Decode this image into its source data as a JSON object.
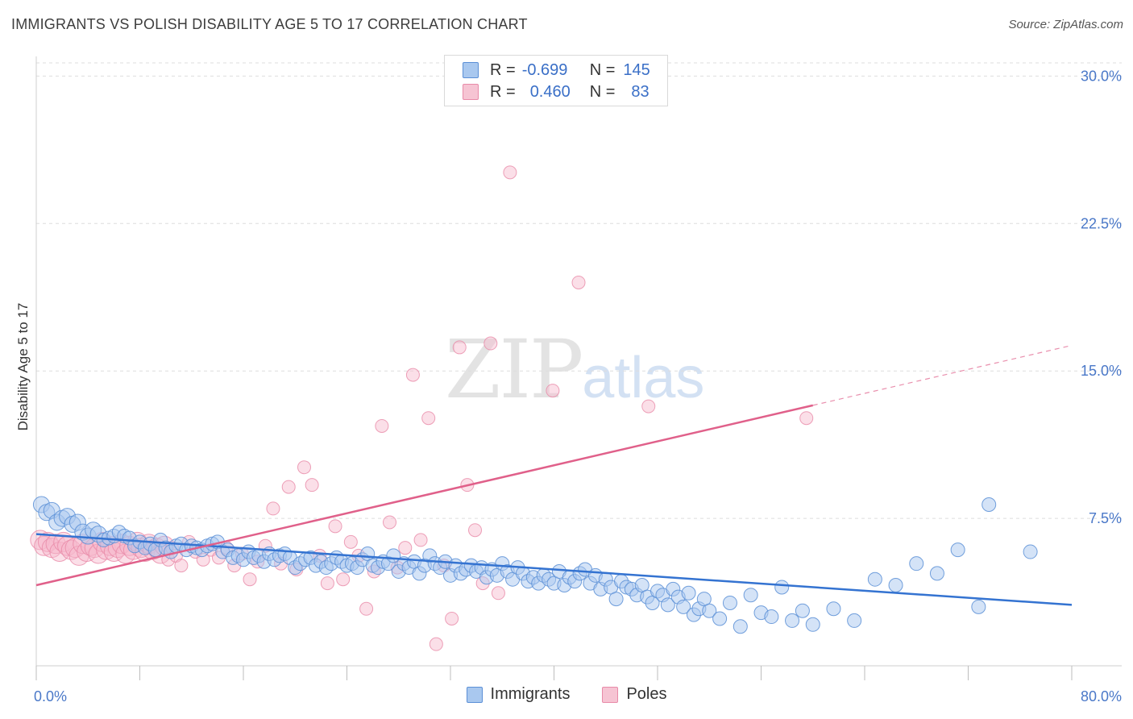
{
  "header": {
    "title": "IMMIGRANTS VS POLISH DISABILITY AGE 5 TO 17 CORRELATION CHART",
    "source": "Source: ZipAtlas.com"
  },
  "watermark": {
    "zip": "ZIP",
    "atlas": "atlas"
  },
  "legend": {
    "immigrants": {
      "r_label": "R =",
      "r_value": "-0.699",
      "n_label": "N =",
      "n_value": "145"
    },
    "poles": {
      "r_label": "R =",
      "r_value": "0.460",
      "n_label": "N =",
      "n_value": "83"
    }
  },
  "bottom_legend": {
    "immigrants": "Immigrants",
    "poles": "Poles"
  },
  "colors": {
    "immigrants_fill": "#a9c8ef",
    "immigrants_stroke": "#5b8fd6",
    "immigrants_line": "#3473d1",
    "poles_fill": "#f6b8cb",
    "poles_stroke": "#e88aa8",
    "poles_line": "#e0608a",
    "tick_text": "#4a78c8",
    "grid": "#dedede"
  },
  "chart_data": {
    "type": "scatter",
    "title": "IMMIGRANTS VS POLISH DISABILITY AGE 5 TO 17 CORRELATION CHART",
    "xlabel": "",
    "ylabel": "Disability Age 5 to 17",
    "xlim": [
      0,
      80
    ],
    "ylim": [
      0,
      31
    ],
    "x_tick_labels": [
      "0.0%",
      "80.0%"
    ],
    "y_ticks": [
      7.5,
      15.0,
      22.5,
      30.0
    ],
    "y_tick_labels": [
      "7.5%",
      "15.0%",
      "22.5%",
      "30.0%"
    ],
    "grid": "horizontal dashed",
    "legend_position": "top-center",
    "series": [
      {
        "name": "Immigrants",
        "r": -0.699,
        "n": 145,
        "trend": {
          "x": [
            0,
            80
          ],
          "y": [
            6.7,
            3.1
          ]
        },
        "points": [
          [
            0.4,
            8.2
          ],
          [
            0.8,
            7.8
          ],
          [
            1.2,
            7.9
          ],
          [
            1.6,
            7.3
          ],
          [
            2.0,
            7.5
          ],
          [
            2.4,
            7.6
          ],
          [
            2.8,
            7.2
          ],
          [
            3.2,
            7.3
          ],
          [
            3.6,
            6.8
          ],
          [
            4.0,
            6.6
          ],
          [
            4.4,
            6.9
          ],
          [
            4.8,
            6.7
          ],
          [
            5.2,
            6.4
          ],
          [
            5.6,
            6.5
          ],
          [
            6.0,
            6.6
          ],
          [
            6.4,
            6.8
          ],
          [
            6.8,
            6.6
          ],
          [
            7.2,
            6.5
          ],
          [
            7.6,
            6.1
          ],
          [
            8.0,
            6.3
          ],
          [
            8.4,
            6.0
          ],
          [
            8.8,
            6.2
          ],
          [
            9.2,
            5.9
          ],
          [
            9.6,
            6.4
          ],
          [
            10.0,
            6.0
          ],
          [
            10.4,
            5.8
          ],
          [
            10.8,
            6.1
          ],
          [
            11.2,
            6.2
          ],
          [
            11.6,
            5.9
          ],
          [
            12.0,
            6.1
          ],
          [
            12.4,
            6.0
          ],
          [
            12.8,
            5.9
          ],
          [
            13.2,
            6.1
          ],
          [
            13.6,
            6.2
          ],
          [
            14.0,
            6.3
          ],
          [
            14.4,
            5.8
          ],
          [
            14.8,
            5.9
          ],
          [
            15.2,
            5.5
          ],
          [
            15.6,
            5.6
          ],
          [
            16.0,
            5.4
          ],
          [
            16.4,
            5.8
          ],
          [
            16.8,
            5.5
          ],
          [
            17.2,
            5.6
          ],
          [
            17.6,
            5.3
          ],
          [
            18.0,
            5.7
          ],
          [
            18.4,
            5.4
          ],
          [
            18.8,
            5.6
          ],
          [
            19.2,
            5.7
          ],
          [
            19.6,
            5.5
          ],
          [
            20.0,
            5.0
          ],
          [
            20.4,
            5.2
          ],
          [
            20.8,
            5.4
          ],
          [
            21.2,
            5.5
          ],
          [
            21.6,
            5.1
          ],
          [
            22.0,
            5.3
          ],
          [
            22.4,
            5.0
          ],
          [
            22.8,
            5.2
          ],
          [
            23.2,
            5.5
          ],
          [
            23.6,
            5.3
          ],
          [
            24.0,
            5.1
          ],
          [
            24.4,
            5.2
          ],
          [
            24.8,
            5.0
          ],
          [
            25.2,
            5.4
          ],
          [
            25.6,
            5.7
          ],
          [
            26.0,
            5.1
          ],
          [
            26.4,
            5.0
          ],
          [
            26.8,
            5.3
          ],
          [
            27.2,
            5.2
          ],
          [
            27.6,
            5.6
          ],
          [
            28.0,
            4.8
          ],
          [
            28.4,
            5.2
          ],
          [
            28.8,
            5.0
          ],
          [
            29.2,
            5.3
          ],
          [
            29.6,
            4.7
          ],
          [
            30.0,
            5.1
          ],
          [
            30.4,
            5.6
          ],
          [
            30.8,
            5.2
          ],
          [
            31.2,
            5.0
          ],
          [
            31.6,
            5.3
          ],
          [
            32.0,
            4.6
          ],
          [
            32.4,
            5.1
          ],
          [
            32.8,
            4.7
          ],
          [
            33.2,
            4.9
          ],
          [
            33.6,
            5.1
          ],
          [
            34.0,
            4.8
          ],
          [
            34.4,
            5.0
          ],
          [
            34.8,
            4.5
          ],
          [
            35.2,
            4.9
          ],
          [
            35.6,
            4.6
          ],
          [
            36.0,
            5.2
          ],
          [
            36.4,
            4.8
          ],
          [
            36.8,
            4.4
          ],
          [
            37.2,
            5.0
          ],
          [
            37.6,
            4.7
          ],
          [
            38.0,
            4.3
          ],
          [
            38.4,
            4.5
          ],
          [
            38.8,
            4.2
          ],
          [
            39.2,
            4.6
          ],
          [
            39.6,
            4.4
          ],
          [
            40.0,
            4.2
          ],
          [
            40.4,
            4.8
          ],
          [
            40.8,
            4.1
          ],
          [
            41.2,
            4.5
          ],
          [
            41.6,
            4.3
          ],
          [
            42.0,
            4.7
          ],
          [
            42.4,
            4.9
          ],
          [
            42.8,
            4.2
          ],
          [
            43.2,
            4.6
          ],
          [
            43.6,
            3.9
          ],
          [
            44.0,
            4.4
          ],
          [
            44.4,
            4.0
          ],
          [
            44.8,
            3.4
          ],
          [
            45.2,
            4.3
          ],
          [
            45.6,
            4.0
          ],
          [
            46.0,
            3.9
          ],
          [
            46.4,
            3.6
          ],
          [
            46.8,
            4.1
          ],
          [
            47.2,
            3.5
          ],
          [
            47.6,
            3.2
          ],
          [
            48.0,
            3.8
          ],
          [
            48.4,
            3.6
          ],
          [
            48.8,
            3.1
          ],
          [
            49.2,
            3.9
          ],
          [
            49.6,
            3.5
          ],
          [
            50.0,
            3.0
          ],
          [
            50.4,
            3.7
          ],
          [
            50.8,
            2.6
          ],
          [
            51.2,
            2.9
          ],
          [
            51.6,
            3.4
          ],
          [
            52.0,
            2.8
          ],
          [
            52.8,
            2.4
          ],
          [
            53.6,
            3.2
          ],
          [
            54.4,
            2.0
          ],
          [
            55.2,
            3.6
          ],
          [
            56.0,
            2.7
          ],
          [
            56.8,
            2.5
          ],
          [
            57.6,
            4.0
          ],
          [
            58.4,
            2.3
          ],
          [
            59.2,
            2.8
          ],
          [
            60.0,
            2.1
          ],
          [
            61.6,
            2.9
          ],
          [
            63.2,
            2.3
          ],
          [
            64.8,
            4.4
          ],
          [
            66.4,
            4.1
          ],
          [
            68.0,
            5.2
          ],
          [
            69.6,
            4.7
          ],
          [
            71.2,
            5.9
          ],
          [
            72.8,
            3.0
          ],
          [
            73.6,
            8.2
          ],
          [
            76.8,
            5.8
          ]
        ]
      },
      {
        "name": "Poles",
        "r": 0.46,
        "n": 83,
        "trend": {
          "x": [
            0,
            80
          ],
          "y": [
            4.1,
            16.3
          ],
          "solid_until_x": 60
        },
        "points": [
          [
            0.3,
            6.4
          ],
          [
            0.6,
            6.1
          ],
          [
            0.9,
            6.3
          ],
          [
            1.2,
            6.0
          ],
          [
            1.5,
            6.2
          ],
          [
            1.8,
            5.8
          ],
          [
            2.1,
            6.3
          ],
          [
            2.4,
            6.1
          ],
          [
            2.7,
            5.9
          ],
          [
            3.0,
            6.0
          ],
          [
            3.3,
            5.6
          ],
          [
            3.6,
            6.2
          ],
          [
            3.9,
            5.8
          ],
          [
            4.2,
            6.1
          ],
          [
            4.5,
            6.0
          ],
          [
            4.8,
            5.7
          ],
          [
            5.1,
            6.3
          ],
          [
            5.4,
            5.9
          ],
          [
            5.7,
            6.1
          ],
          [
            6.0,
            5.8
          ],
          [
            6.3,
            6.0
          ],
          [
            6.6,
            6.2
          ],
          [
            6.9,
            5.7
          ],
          [
            7.2,
            6.1
          ],
          [
            7.5,
            5.9
          ],
          [
            7.8,
            6.3
          ],
          [
            8.1,
            6.0
          ],
          [
            8.4,
            5.8
          ],
          [
            8.7,
            6.2
          ],
          [
            9.0,
            5.9
          ],
          [
            9.3,
            6.0
          ],
          [
            9.6,
            5.7
          ],
          [
            9.9,
            6.1
          ],
          [
            10.2,
            5.4
          ],
          [
            10.5,
            6.0
          ],
          [
            10.8,
            5.6
          ],
          [
            11.2,
            5.1
          ],
          [
            11.8,
            6.3
          ],
          [
            12.3,
            5.8
          ],
          [
            12.9,
            5.4
          ],
          [
            13.5,
            5.9
          ],
          [
            14.1,
            5.5
          ],
          [
            14.7,
            6.0
          ],
          [
            15.3,
            5.1
          ],
          [
            15.9,
            5.7
          ],
          [
            16.5,
            4.4
          ],
          [
            17.1,
            5.3
          ],
          [
            17.7,
            6.1
          ],
          [
            18.3,
            8.0
          ],
          [
            18.9,
            5.2
          ],
          [
            19.5,
            9.1
          ],
          [
            20.1,
            4.9
          ],
          [
            20.7,
            10.1
          ],
          [
            21.3,
            9.2
          ],
          [
            21.9,
            5.6
          ],
          [
            22.5,
            4.2
          ],
          [
            23.1,
            7.1
          ],
          [
            23.7,
            4.4
          ],
          [
            24.3,
            6.3
          ],
          [
            24.9,
            5.6
          ],
          [
            25.5,
            2.9
          ],
          [
            26.1,
            4.8
          ],
          [
            26.7,
            12.2
          ],
          [
            27.3,
            7.3
          ],
          [
            27.9,
            5.0
          ],
          [
            28.5,
            6.0
          ],
          [
            29.1,
            14.8
          ],
          [
            29.7,
            6.4
          ],
          [
            30.3,
            12.6
          ],
          [
            30.9,
            1.1
          ],
          [
            31.5,
            5.1
          ],
          [
            32.1,
            2.4
          ],
          [
            32.7,
            16.2
          ],
          [
            33.3,
            9.2
          ],
          [
            33.9,
            6.9
          ],
          [
            34.5,
            4.2
          ],
          [
            35.1,
            16.4
          ],
          [
            35.7,
            3.7
          ],
          [
            36.6,
            25.1
          ],
          [
            39.9,
            14.0
          ],
          [
            41.9,
            19.5
          ],
          [
            47.3,
            13.2
          ],
          [
            59.5,
            12.6
          ]
        ]
      }
    ]
  }
}
